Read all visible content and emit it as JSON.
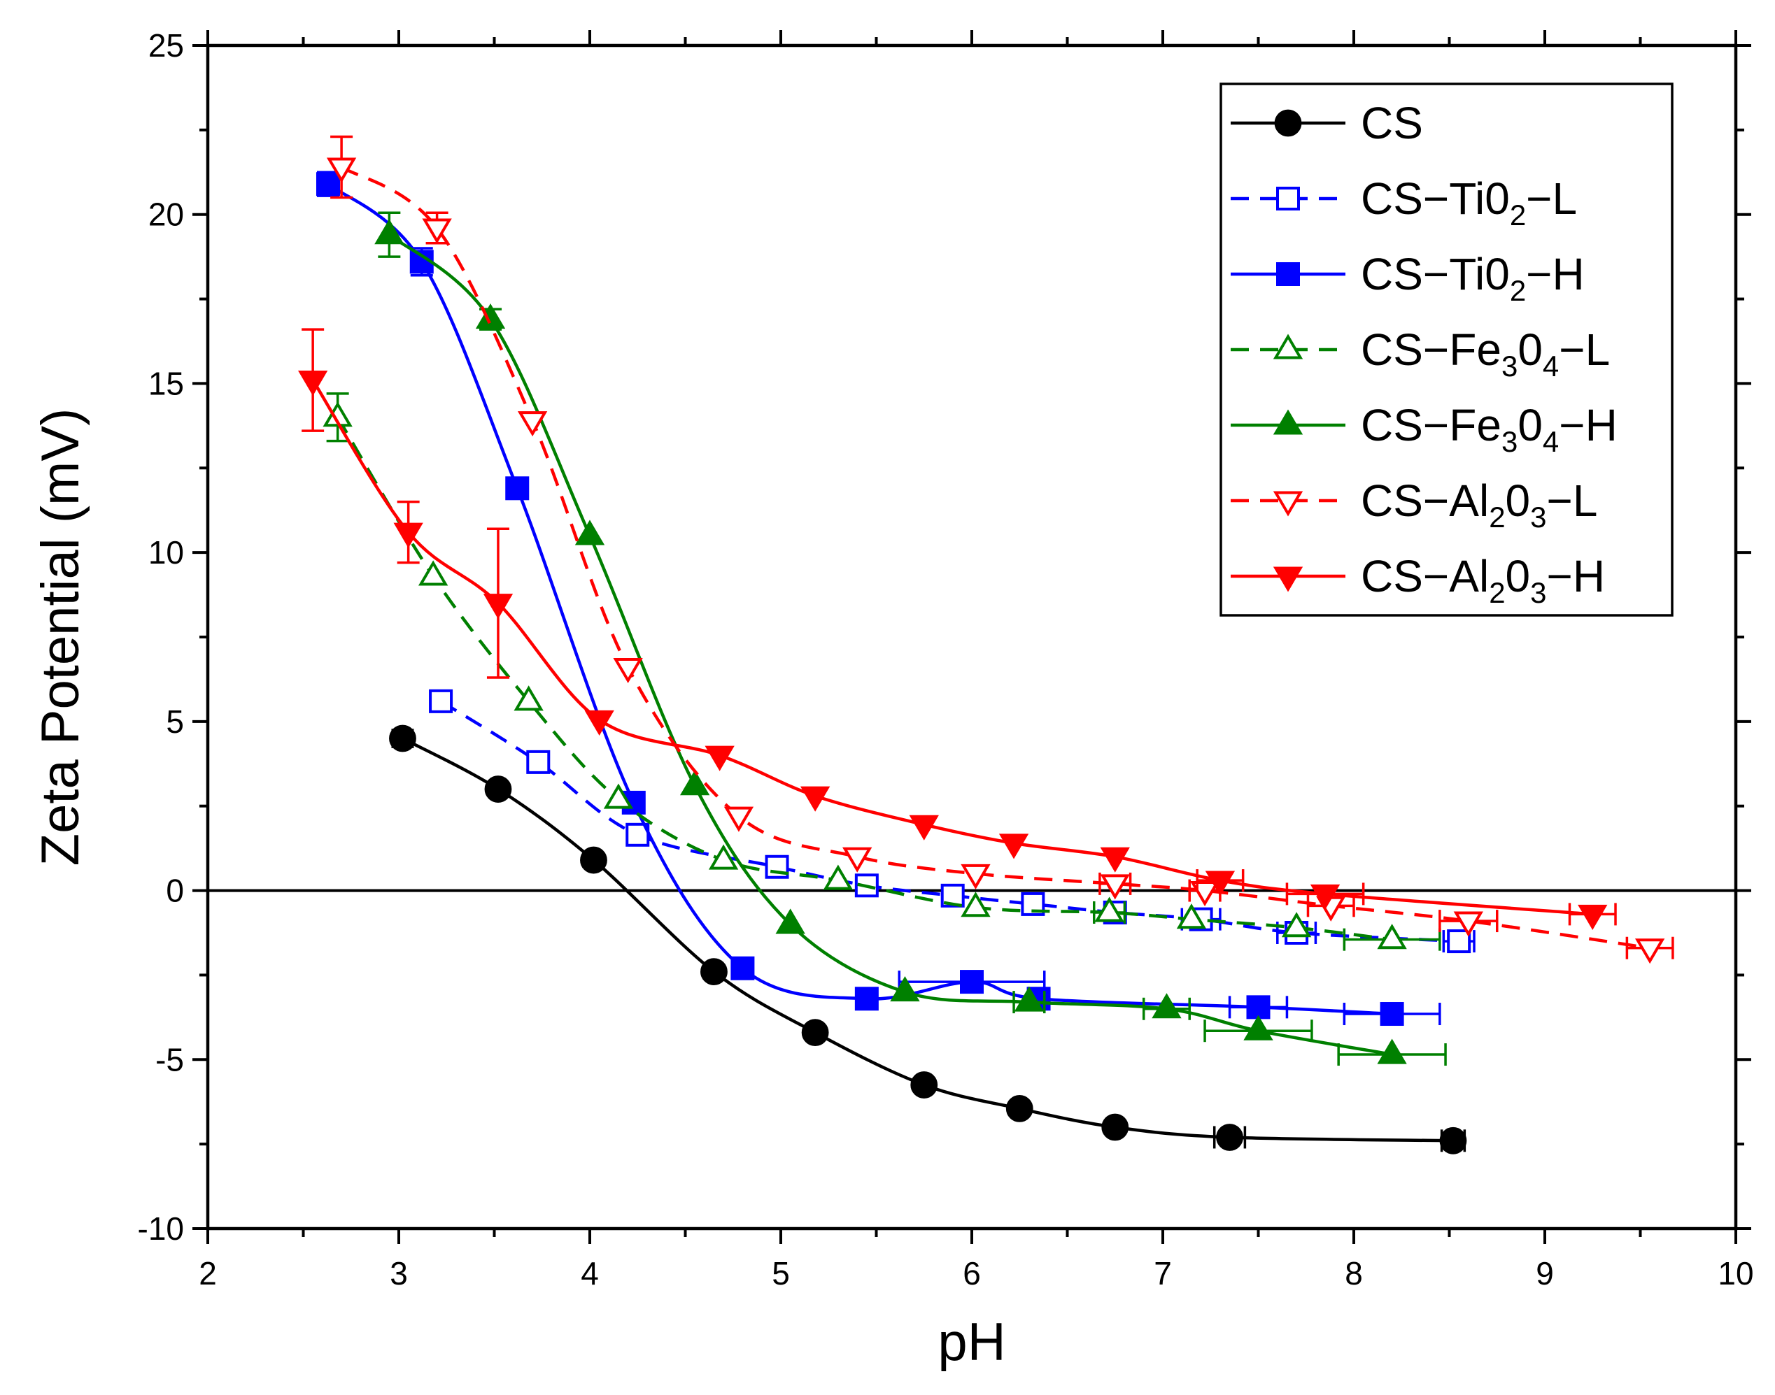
{
  "chart_data": {
    "type": "line",
    "xlabel": "pH",
    "ylabel": "Zeta Potential (mV)",
    "xlim": [
      2,
      10
    ],
    "ylim": [
      -10,
      25
    ],
    "xticks": [
      "2",
      "3",
      "4",
      "5",
      "6",
      "7",
      "8",
      "9",
      "10"
    ],
    "yticks": [
      "-10",
      "-5",
      "0",
      "5",
      "10",
      "15",
      "20",
      "25"
    ],
    "zero_line": true,
    "legend_position": "top-right",
    "series": [
      {
        "name": "CS",
        "legend_parts": [
          "CS"
        ],
        "color": "#000000",
        "marker": "circle",
        "filled": true,
        "dashed": false,
        "points": [
          {
            "x": 3.02,
            "y": 4.5,
            "yerr": 0.25
          },
          {
            "x": 3.52,
            "y": 3.0
          },
          {
            "x": 4.02,
            "y": 0.9
          },
          {
            "x": 4.65,
            "y": -2.4
          },
          {
            "x": 5.18,
            "y": -4.2
          },
          {
            "x": 5.75,
            "y": -5.75
          },
          {
            "x": 6.25,
            "y": -6.45
          },
          {
            "x": 6.75,
            "y": -7.0
          },
          {
            "x": 7.35,
            "y": -7.3,
            "xerr": 0.08
          },
          {
            "x": 8.52,
            "y": -7.4,
            "xerr": 0.06
          }
        ]
      },
      {
        "name": "CS-Ti02-L",
        "legend_parts": [
          "CS−Ti0",
          "2",
          "−L"
        ],
        "color": "#0000ff",
        "marker": "square",
        "filled": false,
        "dashed": true,
        "points": [
          {
            "x": 3.22,
            "y": 5.6
          },
          {
            "x": 3.73,
            "y": 3.8
          },
          {
            "x": 4.25,
            "y": 1.65
          },
          {
            "x": 4.98,
            "y": 0.7
          },
          {
            "x": 5.45,
            "y": 0.15
          },
          {
            "x": 5.9,
            "y": -0.15
          },
          {
            "x": 6.32,
            "y": -0.4
          },
          {
            "x": 6.75,
            "y": -0.65
          },
          {
            "x": 7.2,
            "y": -0.85,
            "xerr": 0.1
          },
          {
            "x": 7.7,
            "y": -1.25,
            "xerr": 0.1
          },
          {
            "x": 8.55,
            "y": -1.5,
            "xerr": 0.08
          }
        ]
      },
      {
        "name": "CS-Ti02-H",
        "legend_parts": [
          "CS−Ti0",
          "2",
          "−H"
        ],
        "color": "#0000ff",
        "marker": "square",
        "filled": true,
        "dashed": false,
        "points": [
          {
            "x": 2.63,
            "y": 20.9,
            "yerr": 0.35
          },
          {
            "x": 3.12,
            "y": 18.6,
            "yerr": 0.4
          },
          {
            "x": 3.62,
            "y": 11.9
          },
          {
            "x": 4.23,
            "y": 2.6
          },
          {
            "x": 4.8,
            "y": -2.3
          },
          {
            "x": 5.45,
            "y": -3.2
          },
          {
            "x": 6.0,
            "y": -2.7,
            "xerr": 0.38
          },
          {
            "x": 6.35,
            "y": -3.2
          },
          {
            "x": 7.5,
            "y": -3.45,
            "xerr": 0.15
          },
          {
            "x": 8.2,
            "y": -3.65,
            "xerr": 0.25
          }
        ]
      },
      {
        "name": "CS-Fe3O4-L",
        "legend_parts": [
          "CS−Fe",
          "3",
          "0",
          "4",
          "−L"
        ],
        "color": "#008000",
        "marker": "triangle-up",
        "filled": false,
        "dashed": true,
        "points": [
          {
            "x": 2.68,
            "y": 14.0,
            "yerr": 0.7
          },
          {
            "x": 3.18,
            "y": 9.3
          },
          {
            "x": 3.68,
            "y": 5.6
          },
          {
            "x": 4.15,
            "y": 2.7
          },
          {
            "x": 4.7,
            "y": 0.9
          },
          {
            "x": 5.3,
            "y": 0.3
          },
          {
            "x": 6.02,
            "y": -0.5
          },
          {
            "x": 6.72,
            "y": -0.65,
            "xerr": 0.08
          },
          {
            "x": 7.15,
            "y": -0.85
          },
          {
            "x": 7.7,
            "y": -1.1
          },
          {
            "x": 8.2,
            "y": -1.45,
            "xerr": 0.25
          }
        ]
      },
      {
        "name": "CS-Fe3O4-H",
        "legend_parts": [
          "CS−Fe",
          "3",
          "0",
          "4",
          "−H"
        ],
        "color": "#008000",
        "marker": "triangle-up",
        "filled": true,
        "dashed": false,
        "points": [
          {
            "x": 2.95,
            "y": 19.4,
            "yerr": 0.65
          },
          {
            "x": 3.48,
            "y": 16.9,
            "yerr": 0.3
          },
          {
            "x": 4.0,
            "y": 10.5
          },
          {
            "x": 4.55,
            "y": 3.1
          },
          {
            "x": 5.05,
            "y": -1.0
          },
          {
            "x": 5.65,
            "y": -3.0
          },
          {
            "x": 6.3,
            "y": -3.3,
            "xerr": 0.08
          },
          {
            "x": 7.02,
            "y": -3.5,
            "xerr": 0.12
          },
          {
            "x": 7.5,
            "y": -4.15,
            "xerr": 0.28
          },
          {
            "x": 8.2,
            "y": -4.85,
            "xerr": 0.28
          }
        ]
      },
      {
        "name": "CS-Al2O3-L",
        "legend_parts": [
          "CS−Al",
          "2",
          "0",
          "3",
          "−L"
        ],
        "color": "#ff0000",
        "marker": "triangle-down",
        "filled": false,
        "dashed": true,
        "points": [
          {
            "x": 2.7,
            "y": 21.4,
            "yerr": 0.9
          },
          {
            "x": 3.2,
            "y": 19.6,
            "yerr": 0.45
          },
          {
            "x": 3.7,
            "y": 13.9
          },
          {
            "x": 4.2,
            "y": 6.6
          },
          {
            "x": 4.78,
            "y": 2.2
          },
          {
            "x": 5.4,
            "y": 1.0
          },
          {
            "x": 6.02,
            "y": 0.5
          },
          {
            "x": 6.75,
            "y": 0.2,
            "xerr": 0.08
          },
          {
            "x": 7.22,
            "y": 0.0,
            "xerr": 0.08
          },
          {
            "x": 7.88,
            "y": -0.45,
            "xerr": 0.12
          },
          {
            "x": 8.6,
            "y": -0.9,
            "xerr": 0.15
          },
          {
            "x": 9.55,
            "y": -1.7,
            "xerr": 0.12
          }
        ]
      },
      {
        "name": "CS-Al2O3-H",
        "legend_parts": [
          "CS−Al",
          "2",
          "0",
          "3",
          "−H"
        ],
        "color": "#ff0000",
        "marker": "triangle-down",
        "filled": true,
        "dashed": false,
        "points": [
          {
            "x": 2.55,
            "y": 15.1,
            "yerr": 1.5
          },
          {
            "x": 3.05,
            "y": 10.6,
            "yerr": 0.9
          },
          {
            "x": 3.52,
            "y": 8.5,
            "yerr": 2.2
          },
          {
            "x": 4.05,
            "y": 5.05
          },
          {
            "x": 4.68,
            "y": 4.0
          },
          {
            "x": 5.18,
            "y": 2.8
          },
          {
            "x": 5.75,
            "y": 1.95
          },
          {
            "x": 6.22,
            "y": 1.4
          },
          {
            "x": 6.75,
            "y": 1.0
          },
          {
            "x": 7.3,
            "y": 0.3,
            "xerr": 0.12
          },
          {
            "x": 7.85,
            "y": -0.1,
            "xerr": 0.2
          },
          {
            "x": 9.25,
            "y": -0.7,
            "xerr": 0.12
          }
        ]
      }
    ]
  }
}
